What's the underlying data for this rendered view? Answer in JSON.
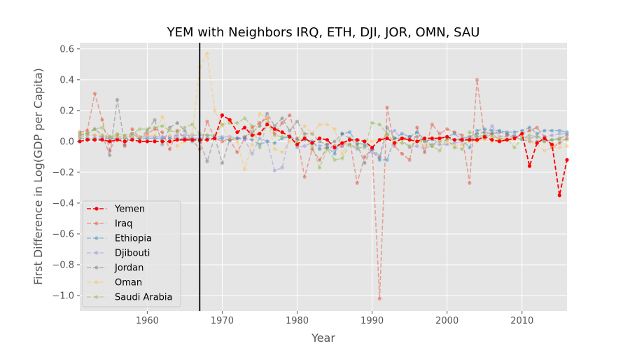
{
  "chart_data": {
    "type": "line",
    "title": "YEM with Neighbors IRQ, ETH, DJI, JOR, OMN, SAU",
    "xlabel": "Year",
    "ylabel": "First Difference in Log(GDP per Capita)",
    "xlim": [
      1951,
      2016
    ],
    "ylim": [
      -1.1,
      0.64
    ],
    "xticks": [
      1960,
      1970,
      1980,
      1990,
      2000,
      2010
    ],
    "yticks": [
      -1.0,
      -0.8,
      -0.6,
      -0.4,
      -0.2,
      0.0,
      0.2,
      0.4,
      0.6
    ],
    "vline_x": 1967,
    "grid": true,
    "legend_position": "lower-left",
    "series": [
      {
        "name": "Yemen",
        "color": "#ff0000",
        "emphasis": true,
        "x": [
          1951,
          1952,
          1953,
          1954,
          1955,
          1956,
          1957,
          1958,
          1959,
          1960,
          1961,
          1962,
          1963,
          1964,
          1965,
          1966,
          1967,
          1968,
          1969,
          1970,
          1971,
          1972,
          1973,
          1974,
          1975,
          1976,
          1977,
          1978,
          1979,
          1980,
          1981,
          1982,
          1983,
          1984,
          1985,
          1986,
          1987,
          1988,
          1989,
          1990,
          1991,
          1992,
          1993,
          1994,
          1995,
          1996,
          1997,
          1998,
          1999,
          2000,
          2001,
          2002,
          2003,
          2004,
          2005,
          2006,
          2007,
          2008,
          2009,
          2010,
          2011,
          2012,
          2013,
          2014,
          2015,
          2016
        ],
        "values": [
          0.0,
          0.01,
          0.01,
          0.01,
          0.0,
          0.01,
          0.0,
          0.01,
          0.0,
          0.0,
          0.0,
          0.0,
          0.0,
          0.01,
          0.01,
          0.01,
          0.01,
          0.01,
          0.02,
          0.17,
          0.14,
          0.06,
          0.09,
          0.04,
          0.05,
          0.11,
          0.08,
          0.06,
          0.03,
          -0.02,
          0.02,
          -0.01,
          0.02,
          0.01,
          -0.04,
          -0.01,
          0.01,
          0.01,
          0.0,
          -0.04,
          0.01,
          0.02,
          -0.01,
          0.02,
          0.01,
          0.0,
          0.02,
          0.02,
          0.02,
          0.03,
          0.01,
          0.01,
          0.01,
          0.01,
          0.03,
          0.01,
          0.0,
          0.01,
          0.02,
          0.05,
          -0.16,
          -0.01,
          0.02,
          -0.02,
          -0.35,
          -0.12
        ]
      },
      {
        "name": "Iraq",
        "color": "#e24a33",
        "x": [
          1951,
          1952,
          1953,
          1954,
          1955,
          1956,
          1957,
          1958,
          1959,
          1960,
          1961,
          1962,
          1963,
          1964,
          1965,
          1966,
          1967,
          1968,
          1969,
          1970,
          1971,
          1972,
          1973,
          1974,
          1975,
          1976,
          1977,
          1978,
          1979,
          1980,
          1981,
          1982,
          1983,
          1984,
          1985,
          1986,
          1987,
          1988,
          1989,
          1990,
          1991,
          1992,
          1993,
          1994,
          1995,
          1996,
          1997,
          1998,
          1999,
          2000,
          2001,
          2002,
          2003,
          2004,
          2005,
          2006,
          2007,
          2008,
          2009,
          2010,
          2011,
          2012,
          2013,
          2014,
          2015,
          2016
        ],
        "values": [
          0.06,
          0.07,
          0.31,
          0.14,
          -0.06,
          0.04,
          -0.03,
          0.08,
          0.02,
          0.05,
          0.08,
          0.06,
          -0.05,
          0.07,
          0.02,
          0.01,
          -0.05,
          0.13,
          0.02,
          0.0,
          0.01,
          -0.07,
          0.02,
          0.09,
          0.12,
          0.15,
          0.05,
          0.12,
          0.17,
          0.02,
          -0.23,
          -0.05,
          -0.12,
          -0.04,
          -0.03,
          -0.03,
          0.01,
          -0.27,
          -0.1,
          -0.05,
          -1.02,
          0.22,
          -0.03,
          -0.08,
          -0.12,
          0.09,
          -0.07,
          0.11,
          0.05,
          0.08,
          0.06,
          0.04,
          -0.27,
          0.4,
          0.02,
          0.05,
          0.01,
          0.04,
          0.02,
          0.05,
          0.07,
          0.09,
          0.03,
          -0.04,
          -0.01,
          0.02
        ]
      },
      {
        "name": "Ethiopia",
        "color": "#348abd",
        "x": [
          1951,
          1952,
          1953,
          1954,
          1955,
          1956,
          1957,
          1958,
          1959,
          1960,
          1961,
          1962,
          1963,
          1964,
          1965,
          1966,
          1967,
          1968,
          1969,
          1970,
          1971,
          1972,
          1973,
          1974,
          1975,
          1976,
          1977,
          1978,
          1979,
          1980,
          1981,
          1982,
          1983,
          1984,
          1985,
          1986,
          1987,
          1988,
          1989,
          1990,
          1991,
          1992,
          1993,
          1994,
          1995,
          1996,
          1997,
          1998,
          1999,
          2000,
          2001,
          2002,
          2003,
          2004,
          2005,
          2006,
          2007,
          2008,
          2009,
          2010,
          2011,
          2012,
          2013,
          2014,
          2015,
          2016
        ],
        "values": [
          0.02,
          0.02,
          0.02,
          0.02,
          0.02,
          0.02,
          0.02,
          0.02,
          0.02,
          0.02,
          0.02,
          0.02,
          0.02,
          0.02,
          0.02,
          0.02,
          0.02,
          0.02,
          0.02,
          0.02,
          0.01,
          0.02,
          0.02,
          0.01,
          -0.02,
          0.0,
          -0.01,
          0.02,
          0.03,
          0.01,
          0.01,
          0.0,
          -0.05,
          -0.04,
          -0.08,
          0.05,
          0.06,
          -0.01,
          -0.02,
          -0.05,
          -0.12,
          -0.12,
          0.02,
          0.05,
          0.03,
          0.06,
          0.01,
          -0.03,
          0.02,
          0.03,
          0.05,
          0.01,
          -0.04,
          0.07,
          0.08,
          0.07,
          0.07,
          0.06,
          0.06,
          0.07,
          0.09,
          0.05,
          0.07,
          0.07,
          0.07,
          0.06
        ]
      },
      {
        "name": "Djibouti",
        "color": "#988ed5",
        "x": [
          1951,
          1952,
          1953,
          1954,
          1955,
          1956,
          1957,
          1958,
          1959,
          1960,
          1961,
          1962,
          1963,
          1964,
          1965,
          1966,
          1967,
          1968,
          1969,
          1970,
          1971,
          1972,
          1973,
          1974,
          1975,
          1976,
          1977,
          1978,
          1979,
          1980,
          1981,
          1982,
          1983,
          1984,
          1985,
          1986,
          1987,
          1988,
          1989,
          1990,
          1991,
          1992,
          1993,
          1994,
          1995,
          1996,
          1997,
          1998,
          1999,
          2000,
          2001,
          2002,
          2003,
          2004,
          2005,
          2006,
          2007,
          2008,
          2009,
          2010,
          2011,
          2012,
          2013,
          2014,
          2015,
          2016
        ],
        "values": [
          0.03,
          0.04,
          0.04,
          0.03,
          0.03,
          0.03,
          0.03,
          0.03,
          0.03,
          0.03,
          0.03,
          0.03,
          0.03,
          0.04,
          0.04,
          0.04,
          0.04,
          0.04,
          0.03,
          0.03,
          0.03,
          0.02,
          0.01,
          -0.08,
          0.02,
          0.0,
          -0.19,
          -0.17,
          0.04,
          -0.04,
          -0.03,
          -0.01,
          -0.03,
          -0.02,
          -0.06,
          -0.03,
          -0.02,
          -0.05,
          -0.03,
          -0.07,
          -0.11,
          0.04,
          0.07,
          0.01,
          -0.04,
          -0.03,
          -0.05,
          -0.02,
          -0.02,
          -0.02,
          -0.01,
          0.0,
          0.02,
          0.03,
          0.02,
          0.1,
          0.03,
          0.04,
          0.04,
          0.03,
          0.02,
          0.03,
          0.03,
          0.04,
          0.05,
          0.05
        ]
      },
      {
        "name": "Jordan",
        "color": "#777777",
        "x": [
          1951,
          1952,
          1953,
          1954,
          1955,
          1956,
          1957,
          1958,
          1959,
          1960,
          1961,
          1962,
          1963,
          1964,
          1965,
          1966,
          1967,
          1968,
          1969,
          1970,
          1971,
          1972,
          1973,
          1974,
          1975,
          1976,
          1977,
          1978,
          1979,
          1980,
          1981,
          1982,
          1983,
          1984,
          1985,
          1986,
          1987,
          1988,
          1989,
          1990,
          1991,
          1992,
          1993,
          1994,
          1995,
          1996,
          1997,
          1998,
          1999,
          2000,
          2001,
          2002,
          2003,
          2004,
          2005,
          2006,
          2007,
          2008,
          2009,
          2010,
          2011,
          2012,
          2013,
          2014,
          2015,
          2016
        ],
        "values": [
          0.04,
          0.05,
          0.08,
          0.04,
          -0.09,
          0.27,
          -0.02,
          0.05,
          0.02,
          0.07,
          0.14,
          -0.02,
          0.09,
          0.12,
          0.07,
          0.0,
          0.0,
          -0.13,
          0.03,
          -0.14,
          0.01,
          0.02,
          0.03,
          0.06,
          0.1,
          0.18,
          0.1,
          0.15,
          0.07,
          0.13,
          0.05,
          0.05,
          0.0,
          -0.02,
          0.0,
          0.05,
          0.02,
          -0.02,
          -0.14,
          -0.04,
          -0.1,
          0.09,
          0.02,
          0.02,
          0.03,
          0.03,
          0.0,
          0.01,
          0.0,
          0.01,
          0.01,
          0.02,
          0.03,
          0.05,
          0.06,
          0.05,
          0.06,
          0.05,
          0.03,
          0.01,
          0.0,
          0.0,
          0.0,
          0.01,
          0.02,
          0.04
        ]
      },
      {
        "name": "Oman",
        "color": "#fbc15e",
        "x": [
          1951,
          1952,
          1953,
          1954,
          1955,
          1956,
          1957,
          1958,
          1959,
          1960,
          1961,
          1962,
          1963,
          1964,
          1965,
          1966,
          1967,
          1968,
          1969,
          1970,
          1971,
          1972,
          1973,
          1974,
          1975,
          1976,
          1977,
          1978,
          1979,
          1980,
          1981,
          1982,
          1983,
          1984,
          1985,
          1986,
          1987,
          1988,
          1989,
          1990,
          1991,
          1992,
          1993,
          1994,
          1995,
          1996,
          1997,
          1998,
          1999,
          2000,
          2001,
          2002,
          2003,
          2004,
          2005,
          2006,
          2007,
          2008,
          2009,
          2010,
          2011,
          2012,
          2013,
          2014,
          2015,
          2016
        ],
        "values": [
          0.03,
          0.04,
          0.04,
          0.04,
          0.03,
          0.03,
          0.03,
          0.03,
          0.03,
          0.04,
          0.04,
          0.16,
          0.04,
          -0.03,
          0.0,
          0.05,
          0.48,
          0.57,
          0.2,
          0.1,
          0.02,
          0.0,
          -0.18,
          -0.02,
          0.18,
          0.15,
          -0.05,
          -0.07,
          0.0,
          0.0,
          0.1,
          0.05,
          0.11,
          0.11,
          0.08,
          -0.08,
          0.01,
          0.0,
          0.0,
          0.0,
          0.01,
          0.04,
          0.0,
          0.01,
          0.01,
          0.0,
          -0.03,
          -0.03,
          0.0,
          0.0,
          -0.03,
          -0.02,
          0.0,
          0.0,
          0.01,
          0.0,
          0.02,
          0.01,
          0.01,
          0.04,
          0.0,
          -0.02,
          -0.06,
          -0.04,
          -0.04,
          -0.03
        ]
      },
      {
        "name": "Saudi Arabia",
        "color": "#8eba42",
        "x": [
          1951,
          1952,
          1953,
          1954,
          1955,
          1956,
          1957,
          1958,
          1959,
          1960,
          1961,
          1962,
          1963,
          1964,
          1965,
          1966,
          1967,
          1968,
          1969,
          1970,
          1971,
          1972,
          1973,
          1974,
          1975,
          1976,
          1977,
          1978,
          1979,
          1980,
          1981,
          1982,
          1983,
          1984,
          1985,
          1986,
          1987,
          1988,
          1989,
          1990,
          1991,
          1992,
          1993,
          1994,
          1995,
          1996,
          1997,
          1998,
          1999,
          2000,
          2001,
          2002,
          2003,
          2004,
          2005,
          2006,
          2007,
          2008,
          2009,
          2010,
          2011,
          2012,
          2013,
          2014,
          2015,
          2016
        ],
        "values": [
          0.05,
          0.05,
          0.08,
          0.09,
          0.03,
          0.05,
          0.04,
          0.05,
          0.08,
          0.08,
          0.09,
          0.1,
          0.07,
          0.06,
          0.09,
          0.11,
          0.05,
          0.04,
          0.04,
          0.11,
          0.12,
          0.12,
          0.15,
          0.1,
          -0.04,
          0.12,
          0.04,
          0.03,
          0.03,
          -0.01,
          0.03,
          -0.03,
          -0.17,
          -0.05,
          -0.12,
          -0.11,
          -0.02,
          -0.04,
          -0.04,
          0.12,
          0.11,
          0.05,
          -0.01,
          -0.01,
          -0.03,
          0.0,
          0.0,
          -0.03,
          -0.06,
          0.02,
          -0.04,
          -0.05,
          0.06,
          0.03,
          0.04,
          0.03,
          0.01,
          0.02,
          -0.04,
          0.02,
          0.04,
          0.03,
          0.01,
          0.01,
          0.01,
          0.01
        ]
      }
    ]
  }
}
